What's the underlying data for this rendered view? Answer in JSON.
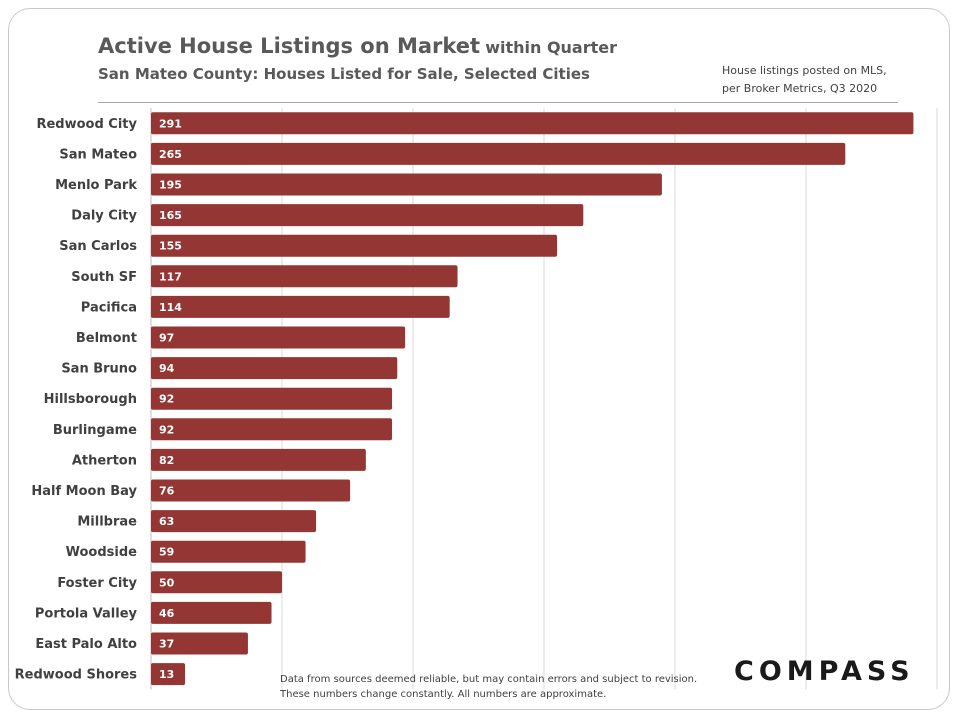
{
  "title": {
    "main": "Active House Listings on Market",
    "suffix": "within Quarter",
    "subtitle": "San Mateo County: Houses Listed for Sale, Selected Cities"
  },
  "source_note": {
    "line1": "House listings posted on MLS,",
    "line2": "per Broker Metrics, Q3 2020"
  },
  "footnote": "Data from sources deemed reliable, but may contain errors and subject to revision. These numbers change constantly.  All numbers are approximate.",
  "brand": "COMPASS",
  "colors": {
    "bar": "#943634",
    "grid": "#d9d9d9",
    "axis": "#bfbfbf"
  },
  "chart_data": {
    "type": "bar",
    "orientation": "horizontal",
    "categories": [
      "Redwood City",
      "San Mateo",
      "Menlo Park",
      "Daly City",
      "San Carlos",
      "South SF",
      "Pacifica",
      "Belmont",
      "San Bruno",
      "Hillsborough",
      "Burlingame",
      "Atherton",
      "Half Moon Bay",
      "Millbrae",
      "Woodside",
      "Foster City",
      "Portola Valley",
      "East Palo Alto",
      "Redwood Shores"
    ],
    "values": [
      291,
      265,
      195,
      165,
      155,
      117,
      114,
      97,
      94,
      92,
      92,
      82,
      76,
      63,
      59,
      50,
      46,
      37,
      13
    ],
    "xlim": [
      0,
      300
    ],
    "grid": true,
    "data_labels": true,
    "legend": "none"
  }
}
